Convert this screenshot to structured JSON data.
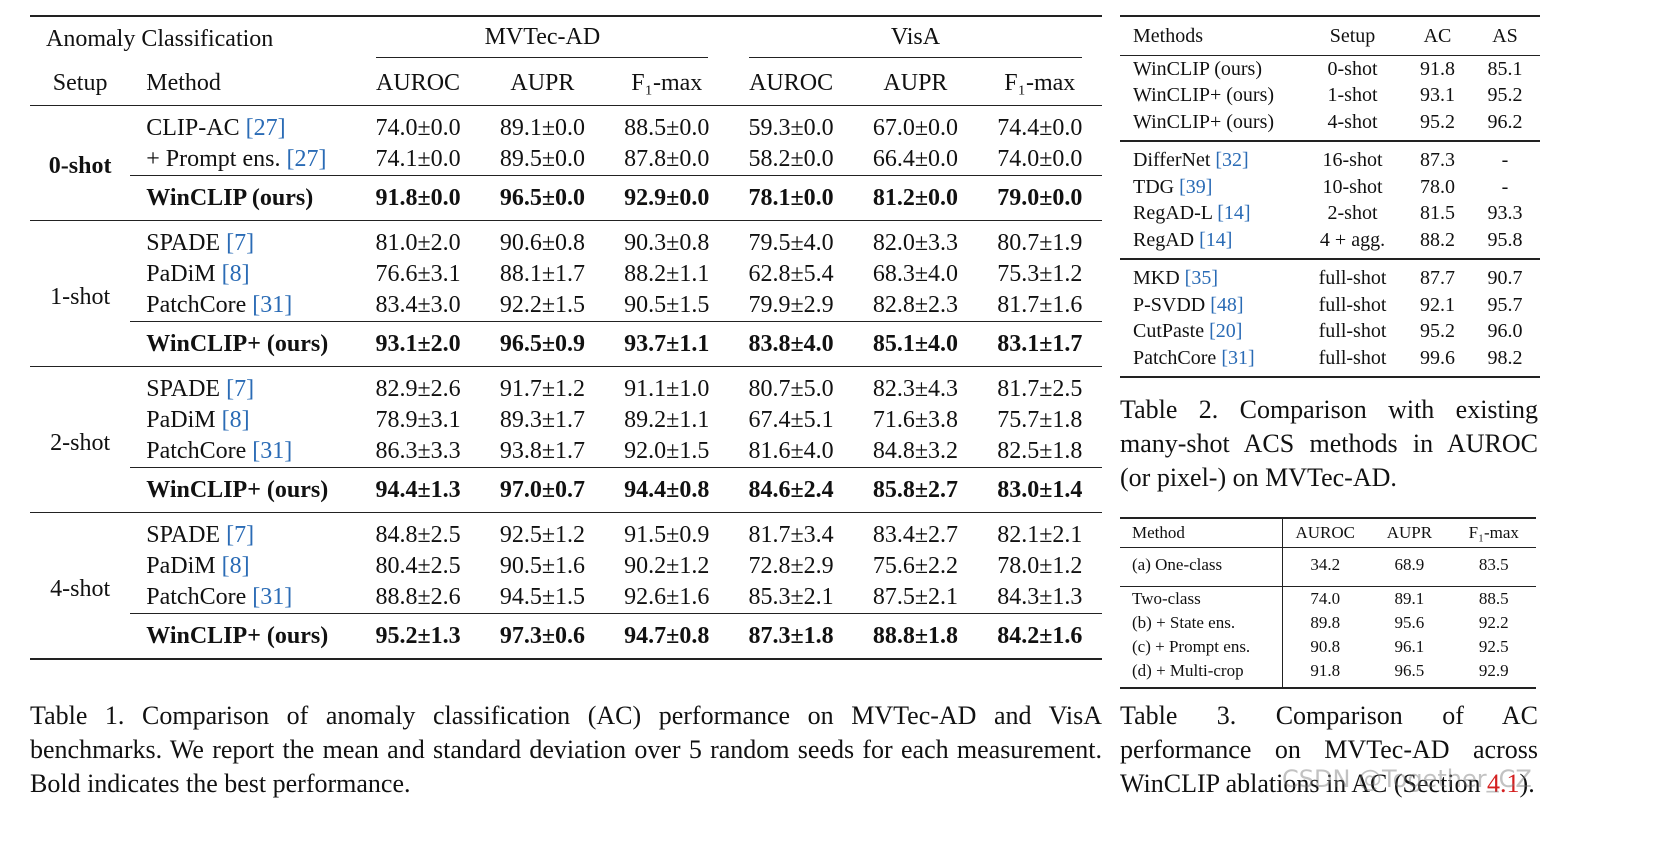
{
  "table1": {
    "title": "Anomaly Classification",
    "datasets": [
      "MVTec-AD",
      "VisA"
    ],
    "setup_header": "Setup",
    "method_header": "Method",
    "metrics": [
      "AUROC",
      "AUPR",
      "F₁-max"
    ],
    "groups": [
      {
        "setup": "0-shot",
        "setup_bold": true,
        "rows": [
          {
            "method": "CLIP-AC",
            "ref": "[27]",
            "values": [
              "74.0±0.0",
              "89.1±0.0",
              "88.5±0.0",
              "59.3±0.0",
              "67.0±0.0",
              "74.4±0.0"
            ]
          },
          {
            "method": "+ Prompt ens.",
            "ref": "[27]",
            "values": [
              "74.1±0.0",
              "89.5±0.0",
              "87.8±0.0",
              "58.2±0.0",
              "66.4±0.0",
              "74.0±0.0"
            ]
          },
          {
            "method": "WinCLIP (ours)",
            "bold": true,
            "values": [
              "91.8±0.0",
              "96.5±0.0",
              "92.9±0.0",
              "78.1±0.0",
              "81.2±0.0",
              "79.0±0.0"
            ]
          }
        ]
      },
      {
        "setup": "1-shot",
        "rows": [
          {
            "method": "SPADE",
            "ref": "[7]",
            "values": [
              "81.0±2.0",
              "90.6±0.8",
              "90.3±0.8",
              "79.5±4.0",
              "82.0±3.3",
              "80.7±1.9"
            ]
          },
          {
            "method": "PaDiM",
            "ref": "[8]",
            "values": [
              "76.6±3.1",
              "88.1±1.7",
              "88.2±1.1",
              "62.8±5.4",
              "68.3±4.0",
              "75.3±1.2"
            ]
          },
          {
            "method": "PatchCore",
            "ref": "[31]",
            "values": [
              "83.4±3.0",
              "92.2±1.5",
              "90.5±1.5",
              "79.9±2.9",
              "82.8±2.3",
              "81.7±1.6"
            ]
          },
          {
            "method": "WinCLIP+ (ours)",
            "bold": true,
            "values": [
              "93.1±2.0",
              "96.5±0.9",
              "93.7±1.1",
              "83.8±4.0",
              "85.1±4.0",
              "83.1±1.7"
            ]
          }
        ]
      },
      {
        "setup": "2-shot",
        "rows": [
          {
            "method": "SPADE",
            "ref": "[7]",
            "values": [
              "82.9±2.6",
              "91.7±1.2",
              "91.1±1.0",
              "80.7±5.0",
              "82.3±4.3",
              "81.7±2.5"
            ]
          },
          {
            "method": "PaDiM",
            "ref": "[8]",
            "values": [
              "78.9±3.1",
              "89.3±1.7",
              "89.2±1.1",
              "67.4±5.1",
              "71.6±3.8",
              "75.7±1.8"
            ]
          },
          {
            "method": "PatchCore",
            "ref": "[31]",
            "values": [
              "86.3±3.3",
              "93.8±1.7",
              "92.0±1.5",
              "81.6±4.0",
              "84.8±3.2",
              "82.5±1.8"
            ]
          },
          {
            "method": "WinCLIP+ (ours)",
            "bold": true,
            "values": [
              "94.4±1.3",
              "97.0±0.7",
              "94.4±0.8",
              "84.6±2.4",
              "85.8±2.7",
              "83.0±1.4"
            ]
          }
        ]
      },
      {
        "setup": "4-shot",
        "rows": [
          {
            "method": "SPADE",
            "ref": "[7]",
            "values": [
              "84.8±2.5",
              "92.5±1.2",
              "91.5±0.9",
              "81.7±3.4",
              "83.4±2.7",
              "82.1±2.1"
            ]
          },
          {
            "method": "PaDiM",
            "ref": "[8]",
            "values": [
              "80.4±2.5",
              "90.5±1.6",
              "90.2±1.2",
              "72.8±2.9",
              "75.6±2.2",
              "78.0±1.2"
            ]
          },
          {
            "method": "PatchCore",
            "ref": "[31]",
            "values": [
              "88.8±2.6",
              "94.5±1.5",
              "92.6±1.6",
              "85.3±2.1",
              "87.5±2.1",
              "84.3±1.3"
            ]
          },
          {
            "method": "WinCLIP+ (ours)",
            "bold": true,
            "values": [
              "95.2±1.3",
              "97.3±0.6",
              "94.7±0.8",
              "87.3±1.8",
              "88.8±1.8",
              "84.2±1.6"
            ]
          }
        ]
      }
    ]
  },
  "table1_caption": "Table 1. Comparison of anomaly classification (AC) performance on MVTec-AD and VisA benchmarks. We report the mean and standard deviation over 5 random seeds for each measurement. Bold indicates the best performance.",
  "table2": {
    "headers": [
      "Methods",
      "Setup",
      "AC",
      "AS"
    ],
    "groups": [
      [
        {
          "method": "WinCLIP (ours)",
          "cells": [
            "0-shot",
            "91.8",
            "85.1"
          ]
        },
        {
          "method": "WinCLIP+ (ours)",
          "cells": [
            "1-shot",
            "93.1",
            "95.2"
          ]
        },
        {
          "method": "WinCLIP+ (ours)",
          "cells": [
            "4-shot",
            "95.2",
            "96.2"
          ]
        }
      ],
      [
        {
          "method": "DifferNet",
          "ref": "[32]",
          "cells": [
            "16-shot",
            "87.3",
            "-"
          ]
        },
        {
          "method": "TDG",
          "ref": "[39]",
          "cells": [
            "10-shot",
            "78.0",
            "-"
          ]
        },
        {
          "method": "RegAD-L",
          "ref": "[14]",
          "cells": [
            "2-shot",
            "81.5",
            "93.3"
          ]
        },
        {
          "method": "RegAD",
          "ref": "[14]",
          "cells": [
            "4 + agg.",
            "88.2",
            "95.8"
          ]
        }
      ],
      [
        {
          "method": "MKD",
          "ref": "[35]",
          "cells": [
            "full-shot",
            "87.7",
            "90.7"
          ]
        },
        {
          "method": "P-SVDD",
          "ref": "[48]",
          "cells": [
            "full-shot",
            "92.1",
            "95.7"
          ]
        },
        {
          "method": "CutPaste",
          "ref": "[20]",
          "cells": [
            "full-shot",
            "95.2",
            "96.0"
          ]
        },
        {
          "method": "PatchCore",
          "ref": "[31]",
          "cells": [
            "full-shot",
            "99.6",
            "98.2"
          ]
        }
      ]
    ]
  },
  "table2_caption": "Table 2. Comparison with existing many-shot ACS methods in AUROC (or pixel-) on MVTec-AD.",
  "table3": {
    "headers": [
      "Method",
      "AUROC",
      "AUPR",
      "F₁-max"
    ],
    "groups": [
      [
        {
          "method": "(a) One-class",
          "cells": [
            "34.2",
            "68.9",
            "83.5"
          ]
        }
      ],
      [
        {
          "method": "Two-class",
          "cells": [
            "74.0",
            "89.1",
            "88.5"
          ]
        },
        {
          "method": "(b) + State ens.",
          "cells": [
            "89.8",
            "95.6",
            "92.2"
          ]
        },
        {
          "method": "(c) + Prompt ens.",
          "cells": [
            "90.8",
            "96.1",
            "92.5"
          ]
        },
        {
          "method": "(d) + Multi-crop",
          "cells": [
            "91.8",
            "96.5",
            "92.9"
          ]
        }
      ]
    ]
  },
  "table3_caption": {
    "before": "Table 3. Comparison of AC performance on MVTec-AD across WinCLIP ablations in AC (Section ",
    "ref": "4.1",
    "after": ")."
  },
  "watermark": "CSDN @Together_CZ"
}
